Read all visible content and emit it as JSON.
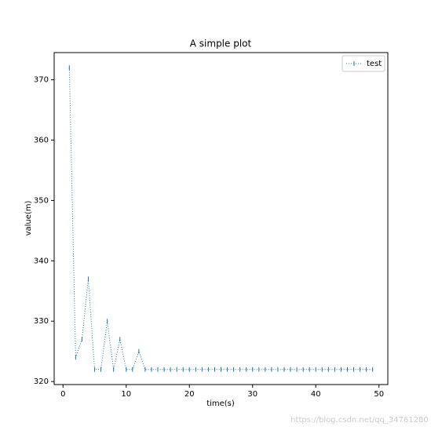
{
  "chart_data": {
    "type": "line",
    "title": "A simple plot",
    "xlabel": "time(s)",
    "ylabel": "value(m)",
    "x": [
      1,
      2,
      3,
      4,
      5,
      6,
      7,
      8,
      9,
      10,
      11,
      12,
      13,
      14,
      15,
      16,
      17,
      18,
      19,
      20,
      21,
      22,
      23,
      24,
      25,
      26,
      27,
      28,
      29,
      30,
      31,
      32,
      33,
      34,
      35,
      36,
      37,
      38,
      39,
      40,
      41,
      42,
      43,
      44,
      45,
      46,
      47,
      48,
      49
    ],
    "series": [
      {
        "name": "test",
        "color": "#1f77b4",
        "values": [
          372,
          324,
          327,
          337,
          322,
          322,
          330,
          322,
          327,
          322,
          322,
          325,
          322,
          322,
          322,
          322,
          322,
          322,
          322,
          322,
          322,
          322,
          322,
          322,
          322,
          322,
          322,
          322,
          322,
          322,
          322,
          322,
          322,
          322,
          322,
          322,
          322,
          322,
          322,
          322,
          322,
          322,
          322,
          322,
          322,
          322,
          322,
          322,
          322
        ]
      }
    ],
    "xlim": [
      -1.4,
      51.4
    ],
    "ylim": [
      319.5,
      374.5
    ],
    "xticks": [
      0,
      10,
      20,
      30,
      40,
      50
    ],
    "yticks": [
      320,
      330,
      340,
      350,
      360,
      370
    ],
    "legend": "upper right",
    "line_style": "dotted",
    "watermark": "https://blog.csdn.net/qq_34761280"
  }
}
